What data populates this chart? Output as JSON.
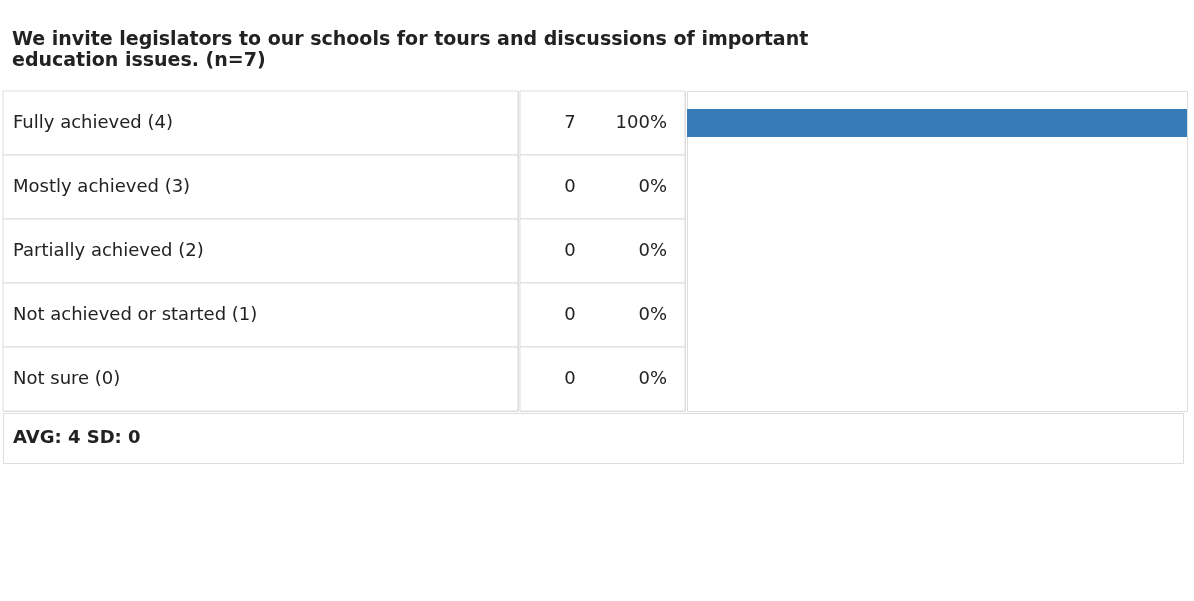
{
  "chart_data": {
    "type": "bar",
    "orientation": "horizontal",
    "title": "We invite legislators to our schools for tours and discussions of important education issues. (n=7)",
    "categories": [
      "Fully achieved (4)",
      "Mostly achieved (3)",
      "Partially achieved (2)",
      "Not achieved or started (1)",
      "Not sure (0)"
    ],
    "values": [
      7,
      0,
      0,
      0,
      0
    ],
    "color": "#377bb9",
    "data_labels": true,
    "annotations": [
      "100%",
      "0%",
      "0%",
      "0%",
      "0%",
      "AVG: 4   SD: 0"
    ]
  }
}
